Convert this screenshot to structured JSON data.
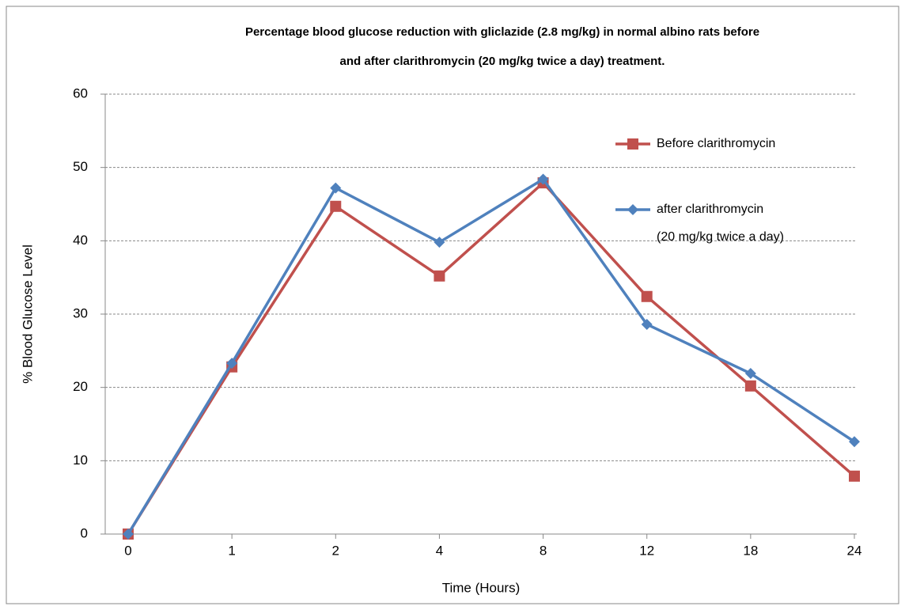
{
  "chart_data": {
    "type": "line",
    "title": "Percentage blood glucose reduction with gliclazide  (2.8 mg/kg) in normal albino rats before\nand after clarithromycin  (20 mg/kg twice a day) treatment.",
    "xlabel": "Time (Hours)",
    "ylabel": "% Blood Glucose Level",
    "categories": [
      "0",
      "1",
      "2",
      "4",
      "8",
      "12",
      "18",
      "24"
    ],
    "series": [
      {
        "name": "Before clarithromycin",
        "color": "#c0504d",
        "marker": "square",
        "values": [
          0,
          22.8,
          44.7,
          35.2,
          47.9,
          32.4,
          20.2,
          7.9
        ]
      },
      {
        "name": "after clarithromycin\n(20 mg/kg twice a day)",
        "color": "#4f81bd",
        "marker": "diamond",
        "values": [
          0,
          23.3,
          47.2,
          39.8,
          48.4,
          28.6,
          21.9,
          12.6
        ]
      }
    ],
    "ylim": [
      0,
      60
    ],
    "yticks": [
      0,
      10,
      20,
      30,
      40,
      50,
      60
    ],
    "grid": true
  }
}
